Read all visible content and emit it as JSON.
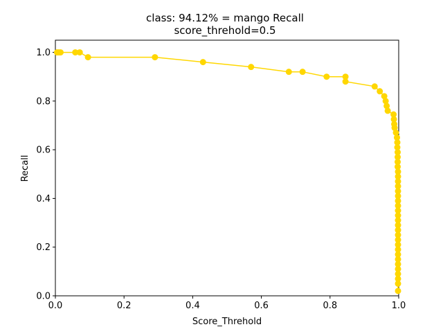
{
  "chart_data": {
    "type": "line",
    "title": "class: 94.12% = mango Recall",
    "subtitle": "score_threhold=0.5",
    "xlabel": "Score_Threhold",
    "ylabel": "Recall",
    "xlim": [
      0,
      1
    ],
    "ylim": [
      0,
      1.05
    ],
    "x_ticks": [
      "0.0",
      "0.2",
      "0.4",
      "0.6",
      "0.8",
      "1.0"
    ],
    "y_ticks": [
      "0.0",
      "0.2",
      "0.4",
      "0.6",
      "0.8",
      "1.0"
    ],
    "grid": false,
    "legend": "none",
    "series": [
      {
        "color": "#FFD700",
        "points": [
          [
            0.005,
            1.0
          ],
          [
            0.01,
            1.0
          ],
          [
            0.015,
            1.0
          ],
          [
            0.058,
            1.0
          ],
          [
            0.071,
            1.0
          ],
          [
            0.095,
            0.98
          ],
          [
            0.29,
            0.98
          ],
          [
            0.43,
            0.96
          ],
          [
            0.57,
            0.94
          ],
          [
            0.68,
            0.92
          ],
          [
            0.72,
            0.92
          ],
          [
            0.79,
            0.9
          ],
          [
            0.845,
            0.9
          ],
          [
            0.845,
            0.88
          ],
          [
            0.93,
            0.86
          ],
          [
            0.945,
            0.84
          ],
          [
            0.958,
            0.82
          ],
          [
            0.962,
            0.8
          ],
          [
            0.965,
            0.78
          ],
          [
            0.968,
            0.76
          ],
          [
            0.985,
            0.745
          ],
          [
            0.986,
            0.725
          ],
          [
            0.987,
            0.705
          ],
          [
            0.988,
            0.69
          ],
          [
            0.992,
            0.67
          ],
          [
            0.995,
            0.65
          ],
          [
            0.996,
            0.63
          ],
          [
            0.996,
            0.61
          ],
          [
            0.997,
            0.59
          ],
          [
            0.997,
            0.57
          ],
          [
            0.997,
            0.55
          ],
          [
            0.997,
            0.53
          ],
          [
            0.998,
            0.51
          ],
          [
            0.998,
            0.49
          ],
          [
            0.998,
            0.47
          ],
          [
            0.998,
            0.45
          ],
          [
            0.998,
            0.43
          ],
          [
            0.998,
            0.41
          ],
          [
            0.998,
            0.39
          ],
          [
            0.998,
            0.37
          ],
          [
            0.998,
            0.35
          ],
          [
            0.998,
            0.33
          ],
          [
            0.998,
            0.31
          ],
          [
            0.998,
            0.29
          ],
          [
            0.998,
            0.27
          ],
          [
            0.998,
            0.25
          ],
          [
            0.998,
            0.23
          ],
          [
            0.998,
            0.21
          ],
          [
            0.998,
            0.19
          ],
          [
            0.998,
            0.17
          ],
          [
            0.998,
            0.15
          ],
          [
            0.998,
            0.13
          ],
          [
            0.998,
            0.11
          ],
          [
            0.998,
            0.09
          ],
          [
            0.998,
            0.07
          ],
          [
            0.998,
            0.05
          ],
          [
            0.998,
            0.02
          ]
        ]
      }
    ]
  }
}
